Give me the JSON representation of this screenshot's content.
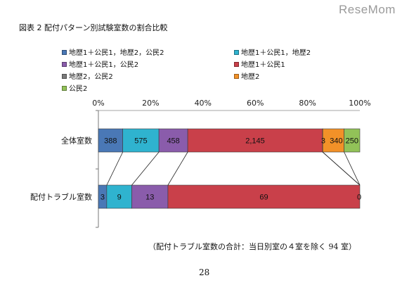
{
  "watermark": "ReseMom",
  "title": "図表 2 配付パターン別試験室数の割合比較",
  "note": "（配付トラブル室数の合計：当日別室の４室を除く 94 室）",
  "page_number": "28",
  "chart_data": {
    "type": "bar",
    "orientation": "horizontal",
    "stacked": "percent",
    "title": "図表 2 配付パターン別試験室数の割合比較",
    "xlim": [
      0,
      100
    ],
    "x_ticks": [
      "0%",
      "20%",
      "40%",
      "60%",
      "80%",
      "100%"
    ],
    "x_tick_values": [
      0,
      20,
      40,
      60,
      80,
      100
    ],
    "legend_position": "top",
    "categories": [
      "全体室数",
      "配付トラブル室数"
    ],
    "series": [
      {
        "name": "地歴1＋公民1，地歴2，公民2",
        "color": "#4a78b6",
        "values": [
          388,
          3
        ]
      },
      {
        "name": "地歴1＋公民1，地歴2",
        "color": "#2fb3cf",
        "values": [
          575,
          9
        ]
      },
      {
        "name": "地歴1＋公民1，公民2",
        "color": "#8a5cab",
        "values": [
          458,
          13
        ]
      },
      {
        "name": "地歴1＋公民1",
        "color": "#c9404a",
        "values": [
          2145,
          69
        ]
      },
      {
        "name": "地歴2，公民2",
        "color": "#7a7a7a",
        "values": [
          3,
          0
        ]
      },
      {
        "name": "地歴2",
        "color": "#f29128",
        "values": [
          340,
          0
        ]
      },
      {
        "name": "公民2",
        "color": "#92c258",
        "values": [
          250,
          0
        ]
      }
    ],
    "data_labels": [
      [
        "388",
        "575",
        "458",
        "2,145",
        "3",
        "340",
        "250"
      ],
      [
        "3",
        "9",
        "13",
        "69",
        "",
        "",
        "0"
      ]
    ]
  }
}
